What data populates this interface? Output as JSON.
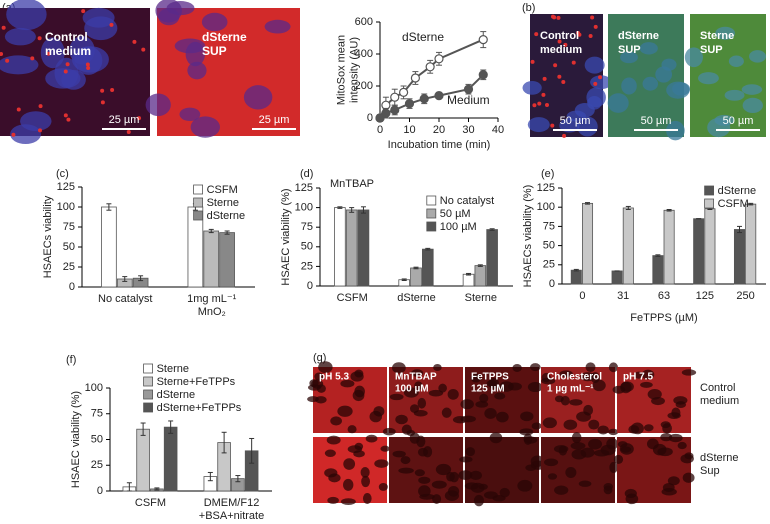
{
  "panel_labels": {
    "a": "(a)",
    "b": "(b)",
    "c": "(c)",
    "d": "(d)",
    "e": "(e)",
    "f": "(f)",
    "g": "(g)"
  },
  "micrographs": [
    {
      "lines": [
        "Control",
        "medium"
      ],
      "scale": "25 µm"
    },
    {
      "lines": [
        "dSterne",
        "SUP"
      ],
      "scale": "25 µm"
    },
    {
      "lines": [
        "Control",
        "medium"
      ],
      "scale": "50 µm"
    },
    {
      "lines": [
        "dSterne",
        "SUP"
      ],
      "scale": "50 µm"
    },
    {
      "lines": [
        "Sterne",
        "SUP"
      ],
      "scale": "50 µm"
    }
  ],
  "grid_g": {
    "columns": [
      [
        "pH 5.3"
      ],
      [
        "MnTBAP",
        "100 µM"
      ],
      [
        "FeTPPS",
        "125 µM"
      ],
      [
        "Cholesterol",
        "1 µg mL⁻¹"
      ],
      [
        "pH 7.5"
      ]
    ],
    "rows": [
      [
        "Control",
        "medium"
      ],
      [
        "dSterne",
        "Sup"
      ]
    ]
  },
  "chart_data": [
    {
      "type": "line",
      "xlabel": "Incubation time (min)",
      "ylabel": [
        "MitoSox mean",
        "intensity (AU)"
      ],
      "xlim": [
        0,
        40
      ],
      "xticks": [
        0,
        10,
        20,
        30,
        40
      ],
      "ylim": [
        0,
        600
      ],
      "yticks": [
        0,
        200,
        400,
        600
      ],
      "annotations": [
        "dSterne",
        "Medium"
      ],
      "series": [
        {
          "name": "dSterne",
          "color": "#555555",
          "marker": "open",
          "x": [
            0,
            2,
            5,
            8,
            12,
            17,
            20,
            35
          ],
          "values": [
            0,
            80,
            130,
            160,
            250,
            320,
            370,
            490
          ],
          "errors": [
            20,
            50,
            50,
            40,
            40,
            40,
            40,
            50
          ]
        },
        {
          "name": "Medium",
          "color": "#555555",
          "marker": "filled",
          "x": [
            0,
            2,
            5,
            10,
            15,
            20,
            30,
            35
          ],
          "values": [
            0,
            30,
            50,
            90,
            120,
            140,
            180,
            270
          ],
          "errors": [
            20,
            30,
            30,
            30,
            30,
            20,
            30,
            30
          ]
        }
      ]
    },
    {
      "type": "bar",
      "ylabel": "HSAECs viability",
      "categories": [
        [
          "No catalyst"
        ],
        [
          "1mg mL⁻¹",
          "MnO₂"
        ]
      ],
      "ylim": [
        0,
        125
      ],
      "yticks": [
        0,
        25,
        50,
        75,
        100,
        125
      ],
      "legend": "upper right",
      "series": [
        {
          "name": "CSFM",
          "color": "#ffffff",
          "values": [
            100,
            100
          ],
          "errors": [
            4,
            4
          ]
        },
        {
          "name": "Sterne",
          "color": "#bbbbbb",
          "values": [
            10,
            70
          ],
          "errors": [
            3,
            2
          ]
        },
        {
          "name": "dSterne",
          "color": "#888888",
          "values": [
            11,
            68
          ],
          "errors": [
            3,
            2
          ]
        }
      ]
    },
    {
      "type": "bar",
      "title": "MnTBAP",
      "ylabel": "HSAEC viability (%)",
      "categories": [
        [
          "CSFM"
        ],
        [
          "dSterne"
        ],
        [
          "Sterne"
        ]
      ],
      "ylim": [
        0,
        125
      ],
      "yticks": [
        0,
        25,
        50,
        75,
        100,
        125
      ],
      "legend": "upper right",
      "series": [
        {
          "name": "No catalyst",
          "color": "#ffffff",
          "values": [
            100,
            8,
            15
          ],
          "errors": [
            1,
            1,
            1
          ]
        },
        {
          "name": "50 µM",
          "color": "#aaaaaa",
          "values": [
            97,
            23,
            26
          ],
          "errors": [
            3,
            1,
            1
          ]
        },
        {
          "name": "100 µM",
          "color": "#555555",
          "values": [
            97,
            47,
            72
          ],
          "errors": [
            4,
            1,
            1
          ]
        }
      ]
    },
    {
      "type": "bar",
      "ylabel": "HSAECs viability (%)",
      "xlabel": "FeTPPS (µM)",
      "categories": [
        [
          "0"
        ],
        [
          "31"
        ],
        [
          "63"
        ],
        [
          "125"
        ],
        [
          "250"
        ]
      ],
      "ylim": [
        0,
        125
      ],
      "yticks": [
        0,
        25,
        50,
        75,
        100,
        125
      ],
      "legend": "upper right",
      "series": [
        {
          "name": "dSterne",
          "color": "#555555",
          "values": [
            18,
            17,
            37,
            85,
            71
          ],
          "errors": [
            1,
            0,
            1,
            0,
            4
          ]
        },
        {
          "name": "CSFM",
          "color": "#c8c8c8",
          "values": [
            105,
            99,
            96,
            98,
            104
          ],
          "errors": [
            1,
            2,
            1,
            1,
            1
          ]
        }
      ]
    },
    {
      "type": "bar",
      "ylabel": "HSAEC viability (%)",
      "categories": [
        [
          "CSFM"
        ],
        [
          "DMEM/F12",
          "+BSA+nitrate"
        ]
      ],
      "ylim": [
        0,
        100
      ],
      "yticks": [
        0,
        25,
        50,
        75,
        100
      ],
      "legend": "top",
      "series": [
        {
          "name": "Sterne",
          "color": "#ffffff",
          "values": [
            4,
            14
          ],
          "errors": [
            4,
            4
          ]
        },
        {
          "name": "Sterne+FeTPPs",
          "color": "#c8c8c8",
          "values": [
            60,
            47
          ],
          "errors": [
            6,
            10
          ]
        },
        {
          "name": "dSterne",
          "color": "#999999",
          "values": [
            2,
            12
          ],
          "errors": [
            1,
            3
          ]
        },
        {
          "name": "dSterne+FeTPPs",
          "color": "#555555",
          "values": [
            62,
            39
          ],
          "errors": [
            6,
            12
          ]
        }
      ]
    }
  ]
}
